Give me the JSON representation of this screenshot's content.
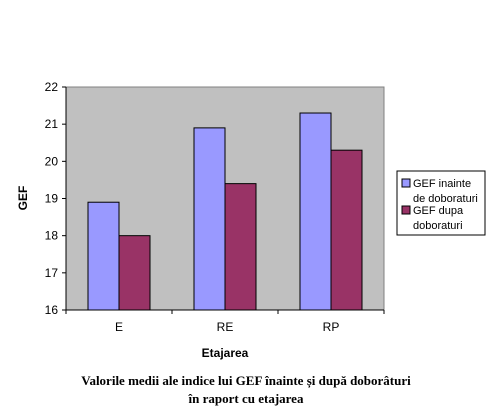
{
  "chart_data": {
    "type": "bar",
    "title": "",
    "xlabel": "Etajarea",
    "ylabel": "GEF",
    "ylim": [
      16,
      22
    ],
    "yticks": [
      16,
      17,
      18,
      19,
      20,
      21,
      22
    ],
    "categories": [
      "E",
      "RE",
      "RP"
    ],
    "series": [
      {
        "name": "GEF inainte de doboraturi",
        "legend_lines": [
          "GEF inainte",
          "de doboraturi"
        ],
        "color": "#9999ff",
        "values": [
          18.9,
          20.9,
          21.3
        ]
      },
      {
        "name": "GEF dupa doboraturi",
        "legend_lines": [
          "GEF dupa",
          "doboraturi"
        ],
        "color": "#993366",
        "values": [
          18.0,
          19.4,
          20.3
        ]
      }
    ],
    "grid": false,
    "plot_background": "#c0c0c0",
    "legend_position": "right"
  },
  "caption": {
    "line1": "Valorile medii ale indice lui GEF înainte și după doborâturi",
    "line2": "în raport cu etajarea"
  }
}
